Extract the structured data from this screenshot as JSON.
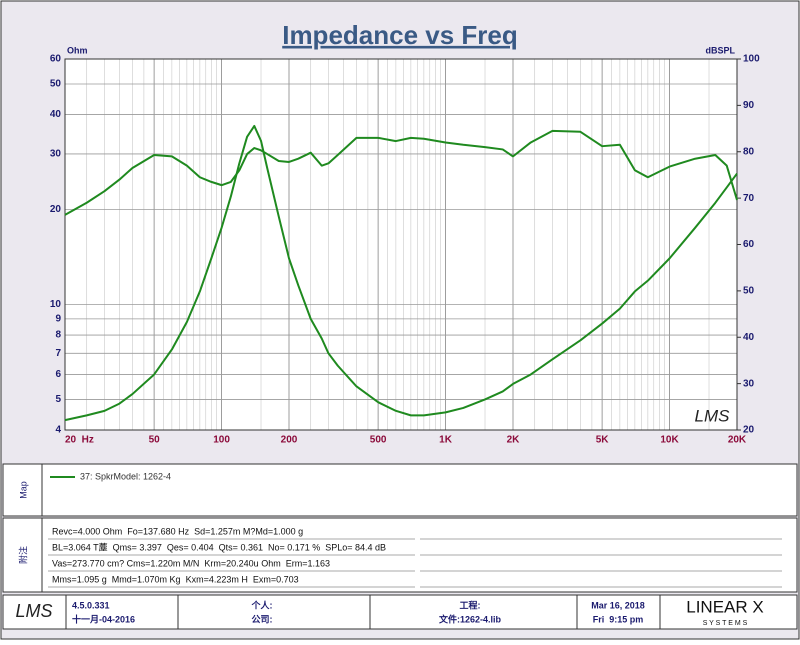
{
  "chart_data": {
    "type": "line",
    "title": "Impedance vs Freq",
    "y_label": "Ohm",
    "y2_label": "dBSPL",
    "watermark": "LMS",
    "xlog": true,
    "ylog": true,
    "grid": true,
    "xlim": [
      20,
      20000
    ],
    "ylim": [
      4,
      60
    ],
    "y2lim": [
      20,
      100
    ],
    "xticks": [
      {
        "value": 20,
        "label": "20  Hz"
      },
      50,
      100,
      200,
      500,
      {
        "value": 1000,
        "label": "1K"
      },
      {
        "value": 2000,
        "label": "2K"
      },
      {
        "value": 5000,
        "label": "5K"
      },
      {
        "value": 10000,
        "label": "10K"
      },
      {
        "value": 20000,
        "label": "20K"
      }
    ],
    "yticks": [
      4,
      5,
      6,
      7,
      8,
      9,
      10,
      20,
      30,
      40,
      50,
      60
    ],
    "y2ticks": [
      20,
      30,
      40,
      50,
      60,
      70,
      80,
      90,
      100
    ],
    "legend": "37: SpkrModel: 1262-4",
    "x": [
      20,
      25,
      30,
      35,
      40,
      50,
      60,
      70,
      80,
      90,
      100,
      110,
      120,
      130,
      140,
      150,
      160,
      180,
      200,
      220,
      250,
      280,
      300,
      330,
      400,
      500,
      600,
      700,
      800,
      1000,
      1200,
      1500,
      1800,
      2000,
      2400,
      3000,
      4000,
      5000,
      6000,
      7000,
      8000,
      10000,
      13000,
      16000,
      18000,
      20000
    ],
    "series": [
      {
        "color": "#1f8a1f",
        "axis": "y",
        "values": [
          4.3,
          4.45,
          4.6,
          4.85,
          5.2,
          6.0,
          7.2,
          8.8,
          11,
          14,
          17.5,
          22,
          28,
          34,
          36.8,
          33,
          27,
          19,
          14,
          11.5,
          9,
          7.8,
          7.0,
          6.4,
          5.5,
          4.9,
          4.6,
          4.45,
          4.45,
          4.55,
          4.7,
          5.0,
          5.3,
          5.6,
          6.0,
          6.7,
          7.7,
          8.7,
          9.7,
          11,
          11.9,
          14,
          17.5,
          21,
          23.5,
          26
        ]
      },
      {
        "color": "#1f8a1f",
        "axis": "y2",
        "values": [
          66.4,
          69,
          71.5,
          74,
          76.5,
          79.3,
          79,
          77,
          74.5,
          73.5,
          72.8,
          73.5,
          76,
          79.5,
          80.8,
          80.3,
          79.5,
          78,
          77.8,
          78.5,
          79.8,
          77,
          77.5,
          79.3,
          83,
          83,
          82.3,
          83,
          82.8,
          82,
          81.5,
          81,
          80.5,
          79,
          82,
          84.5,
          84.3,
          81.2,
          81.5,
          76,
          74.5,
          76.8,
          78.5,
          79.3,
          77,
          69.6
        ]
      }
    ]
  },
  "map_panel": {
    "label": "Map"
  },
  "notes_panel": {
    "label": "附注",
    "lines": [
      "Revc=4.000 Ohm  Fo=137.680 Hz  Sd=1.257m M?Md=1.000 g",
      "BL=3.064 T薼  Qms= 3.397  Qes= 0.404  Qts= 0.361  No= 0.171 %  SPLo= 84.4 dB",
      "Vas=273.770 cm? Cms=1.220m M/N  Krm=20.240u Ohm  Erm=1.163",
      "Mms=1.095 g  Mmd=1.070m Kg  Kxm=4.223m H  Exm=0.703"
    ]
  },
  "footer": {
    "logo": "LMS",
    "version": "4.5.0.331",
    "build_date": "十一月-04-2016",
    "personal": "个人:",
    "company": "公司:",
    "project": "工程:",
    "file": "文件:1262-4.lib",
    "date": "Mar 16, 2018",
    "time": "Fri  9:15 pm",
    "brand": "LINEAR X",
    "brand_sub": "S Y S T E M S"
  }
}
